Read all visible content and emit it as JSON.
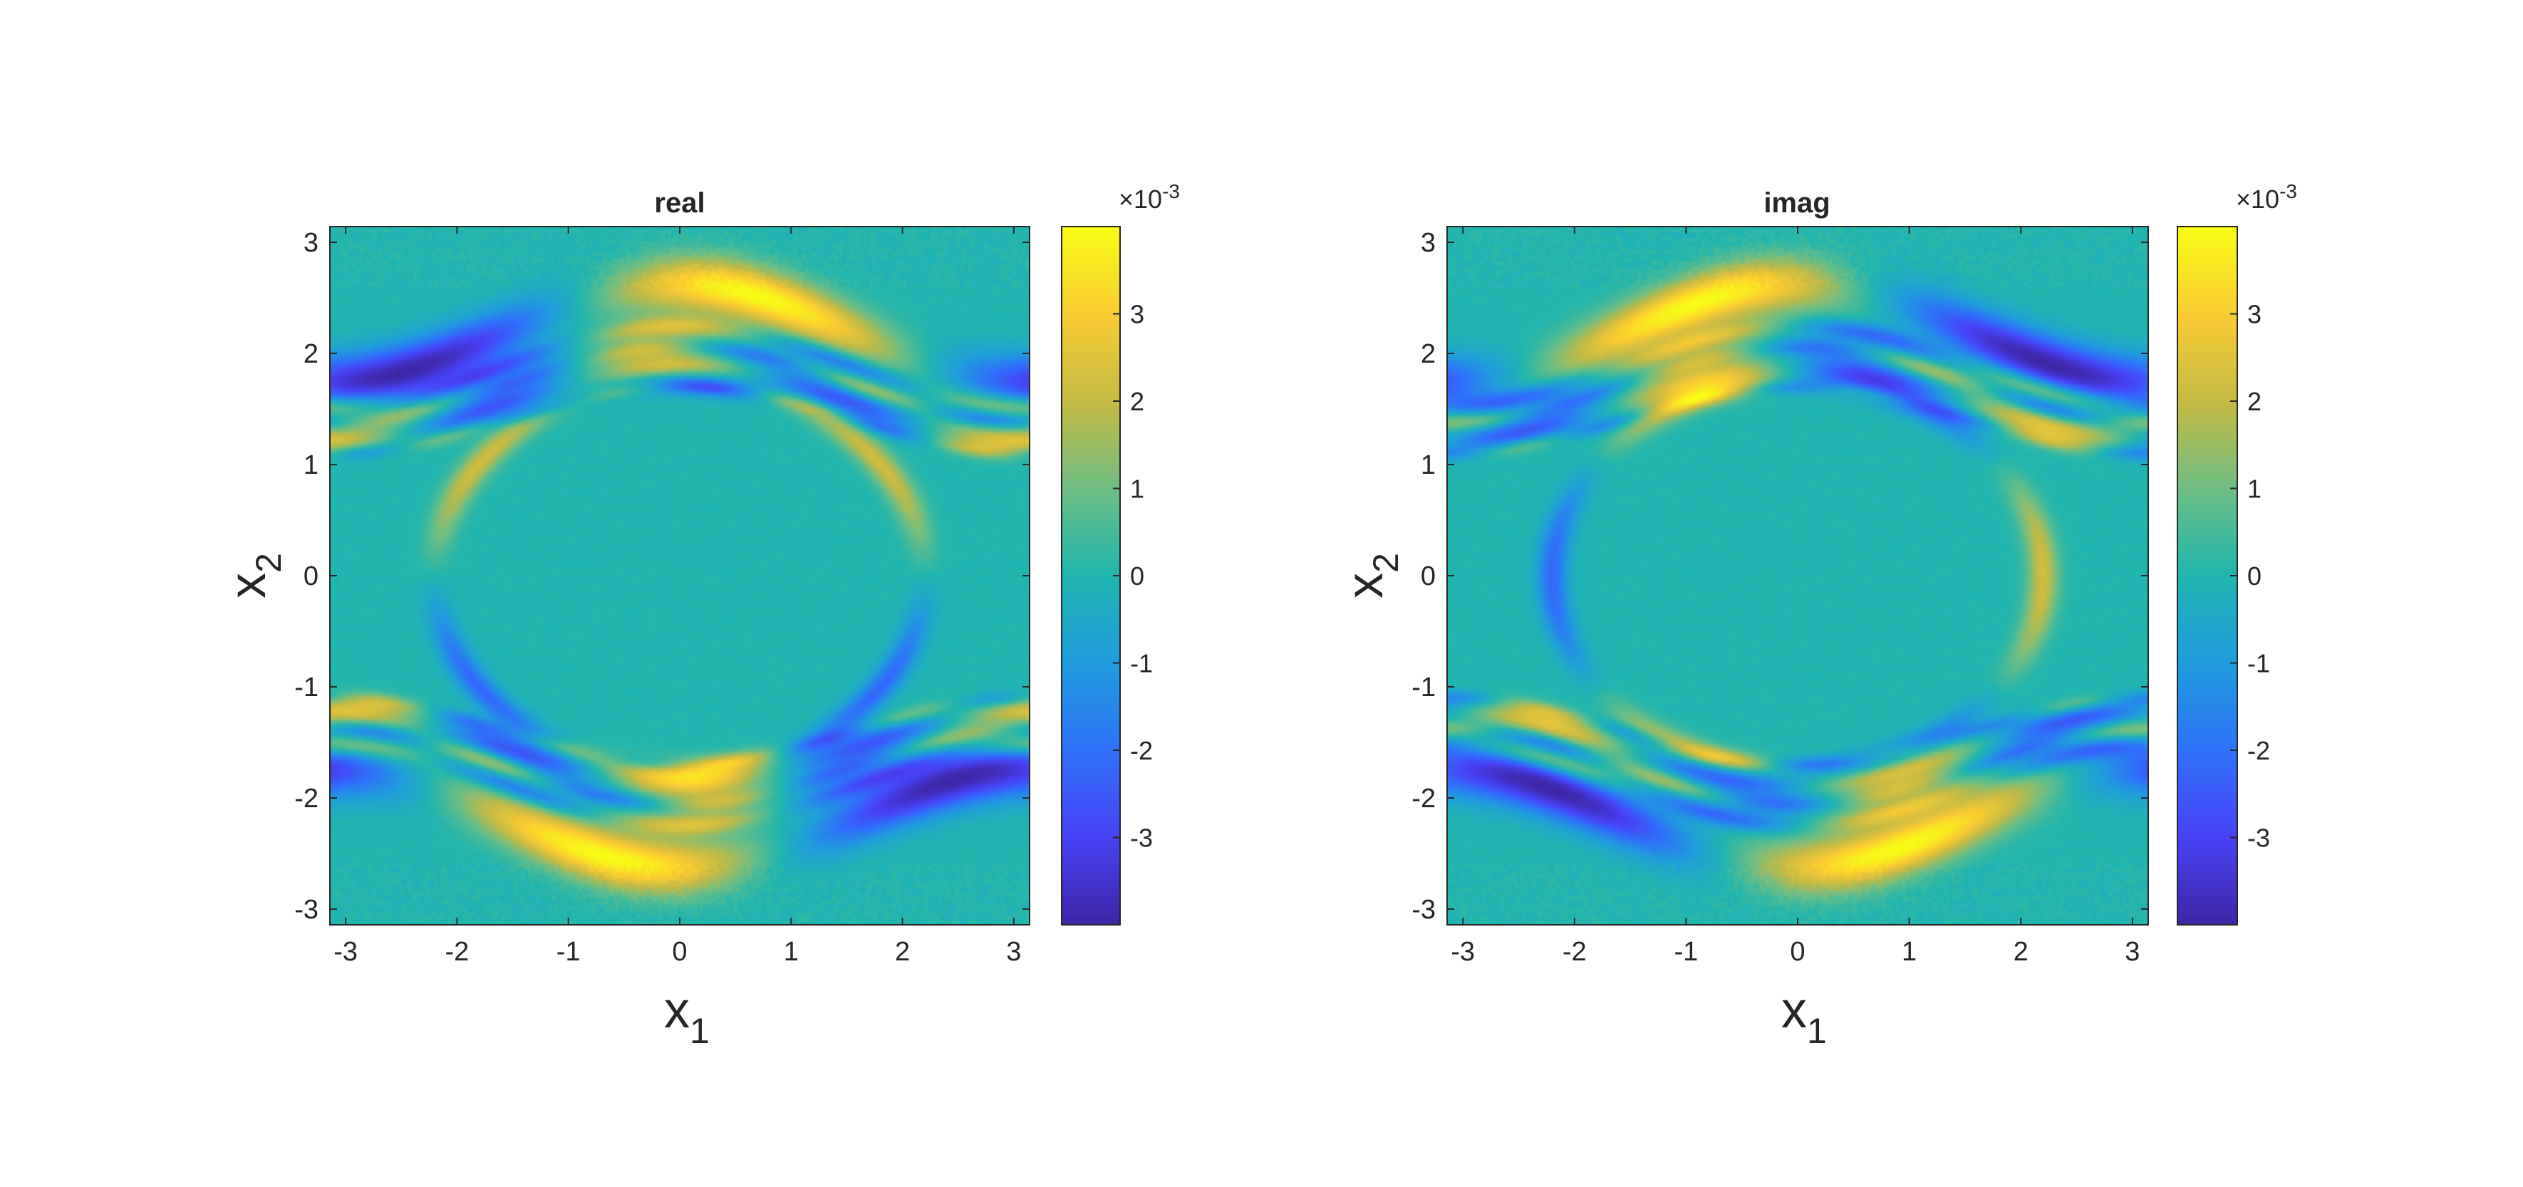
{
  "chart_data": [
    {
      "type": "heatmap",
      "title": "real",
      "xlabel": "x",
      "xlabel_sub": "1",
      "ylabel": "x",
      "ylabel_sub": "2",
      "xlim": [
        -3.1416,
        3.1416
      ],
      "ylim": [
        -3.1416,
        3.1416
      ],
      "xticks": [
        -3,
        -2,
        -1,
        0,
        1,
        2,
        3
      ],
      "yticks": [
        -3,
        -2,
        -1,
        0,
        1,
        2,
        3
      ],
      "colorbar": {
        "colormap": "parula",
        "clim": [
          -0.004,
          0.004
        ],
        "ticks": [
          -3,
          -2,
          -1,
          0,
          1,
          2,
          3
        ],
        "exponent_prefix": "×10",
        "exponent": "-3"
      },
      "phase_shift": 0
    },
    {
      "type": "heatmap",
      "title": "imag",
      "xlabel": "x",
      "xlabel_sub": "1",
      "ylabel": "x",
      "ylabel_sub": "2",
      "xlim": [
        -3.1416,
        3.1416
      ],
      "ylim": [
        -3.1416,
        3.1416
      ],
      "xticks": [
        -3,
        -2,
        -1,
        0,
        1,
        2,
        3
      ],
      "yticks": [
        -3,
        -2,
        -1,
        0,
        1,
        2,
        3
      ],
      "colorbar": {
        "colormap": "parula",
        "clim": [
          -0.004,
          0.004
        ],
        "ticks": [
          -3,
          -2,
          -1,
          0,
          1,
          2,
          3
        ],
        "exponent_prefix": "×10",
        "exponent": "-3"
      },
      "phase_shift": 1.5708
    }
  ],
  "colors": {
    "parula": [
      "#3e26a8",
      "#4743f5",
      "#2f72fa",
      "#1f9ddd",
      "#1fb6b0",
      "#6ebe83",
      "#c6ba44",
      "#f9cc33",
      "#f9fb15"
    ]
  }
}
